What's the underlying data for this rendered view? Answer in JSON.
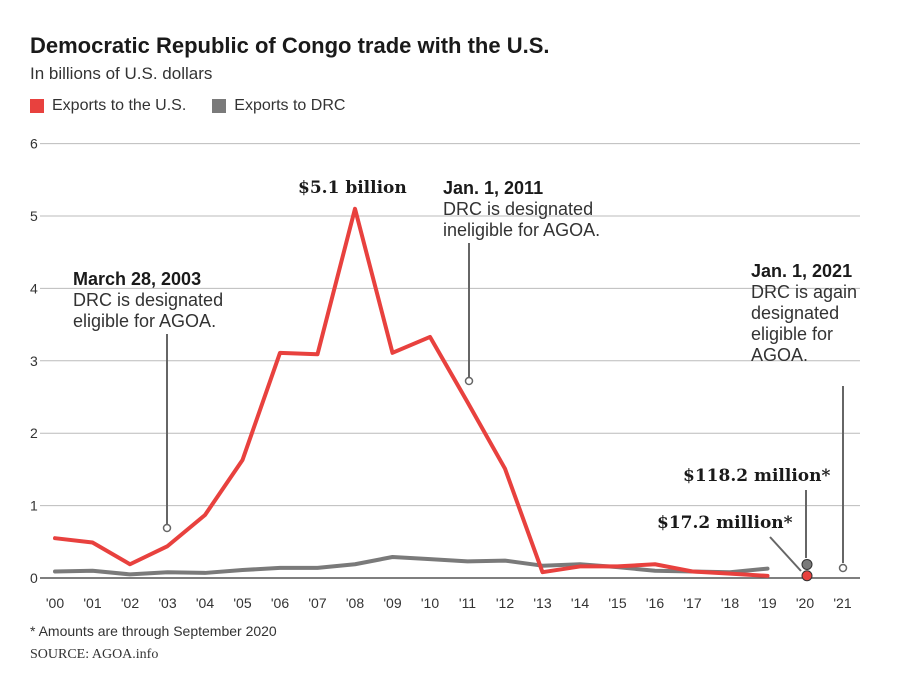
{
  "header": {
    "title": "Democratic Republic of Congo trade with the U.S.",
    "subtitle": "In billions of U.S. dollars"
  },
  "legend": [
    {
      "label": "Exports to the U.S.",
      "color": "#e8413e"
    },
    {
      "label": "Exports to DRC",
      "color": "#7a7a7a"
    }
  ],
  "annotations": {
    "peak": "$5.1 billion",
    "a2003": {
      "date": "March 28, 2003",
      "line1": "DRC is designated",
      "line2": "eligible for AGOA."
    },
    "a2011": {
      "date": "Jan. 1, 2011",
      "line1": "DRC is designated",
      "line2": "ineligible for AGOA."
    },
    "a2021": {
      "date": "Jan. 1, 2021",
      "line1": "DRC is again",
      "line2": "designated",
      "line3": "eligible for",
      "line4": "AGOA."
    },
    "drc2020": "$118.2 million*",
    "us2020": "$17.2 million*"
  },
  "footer": {
    "footnote": "* Amounts are through September 2020",
    "source": "SOURCE: AGOA.info"
  },
  "chart_data": {
    "type": "line",
    "title": "Democratic Republic of Congo trade with the U.S.",
    "subtitle": "In billions of U.S. dollars",
    "x": [
      "'00",
      "'01",
      "'02",
      "'03",
      "'04",
      "'05",
      "'06",
      "'07",
      "'08",
      "'09",
      "'10",
      "'11",
      "'12",
      "'13",
      "'14",
      "'15",
      "'16",
      "'17",
      "'18",
      "'19",
      "'20",
      "'21"
    ],
    "ylim": [
      0,
      6
    ],
    "yticks": [
      0,
      1,
      2,
      3,
      4,
      5,
      6
    ],
    "grid": true,
    "legend_position": "top-left",
    "series": [
      {
        "name": "Exports to the U.S.",
        "color": "#e8413e",
        "values": [
          0.55,
          0.49,
          0.19,
          0.44,
          0.87,
          1.63,
          3.11,
          3.09,
          5.1,
          3.11,
          3.33,
          2.43,
          1.51,
          0.08,
          0.16,
          0.16,
          0.19,
          0.09,
          0.06,
          0.03,
          0.0172,
          null
        ]
      },
      {
        "name": "Exports to DRC",
        "color": "#7a7a7a",
        "values": [
          0.09,
          0.1,
          0.05,
          0.08,
          0.07,
          0.11,
          0.14,
          0.14,
          0.19,
          0.29,
          0.26,
          0.23,
          0.24,
          0.17,
          0.19,
          0.15,
          0.1,
          0.09,
          0.08,
          0.13,
          0.1182,
          null
        ]
      }
    ],
    "events": [
      {
        "x": "'03",
        "label": "March 28, 2003"
      },
      {
        "x": "'11",
        "label": "Jan. 1, 2011"
      },
      {
        "x": "'21",
        "label": "Jan. 1, 2021"
      }
    ]
  }
}
